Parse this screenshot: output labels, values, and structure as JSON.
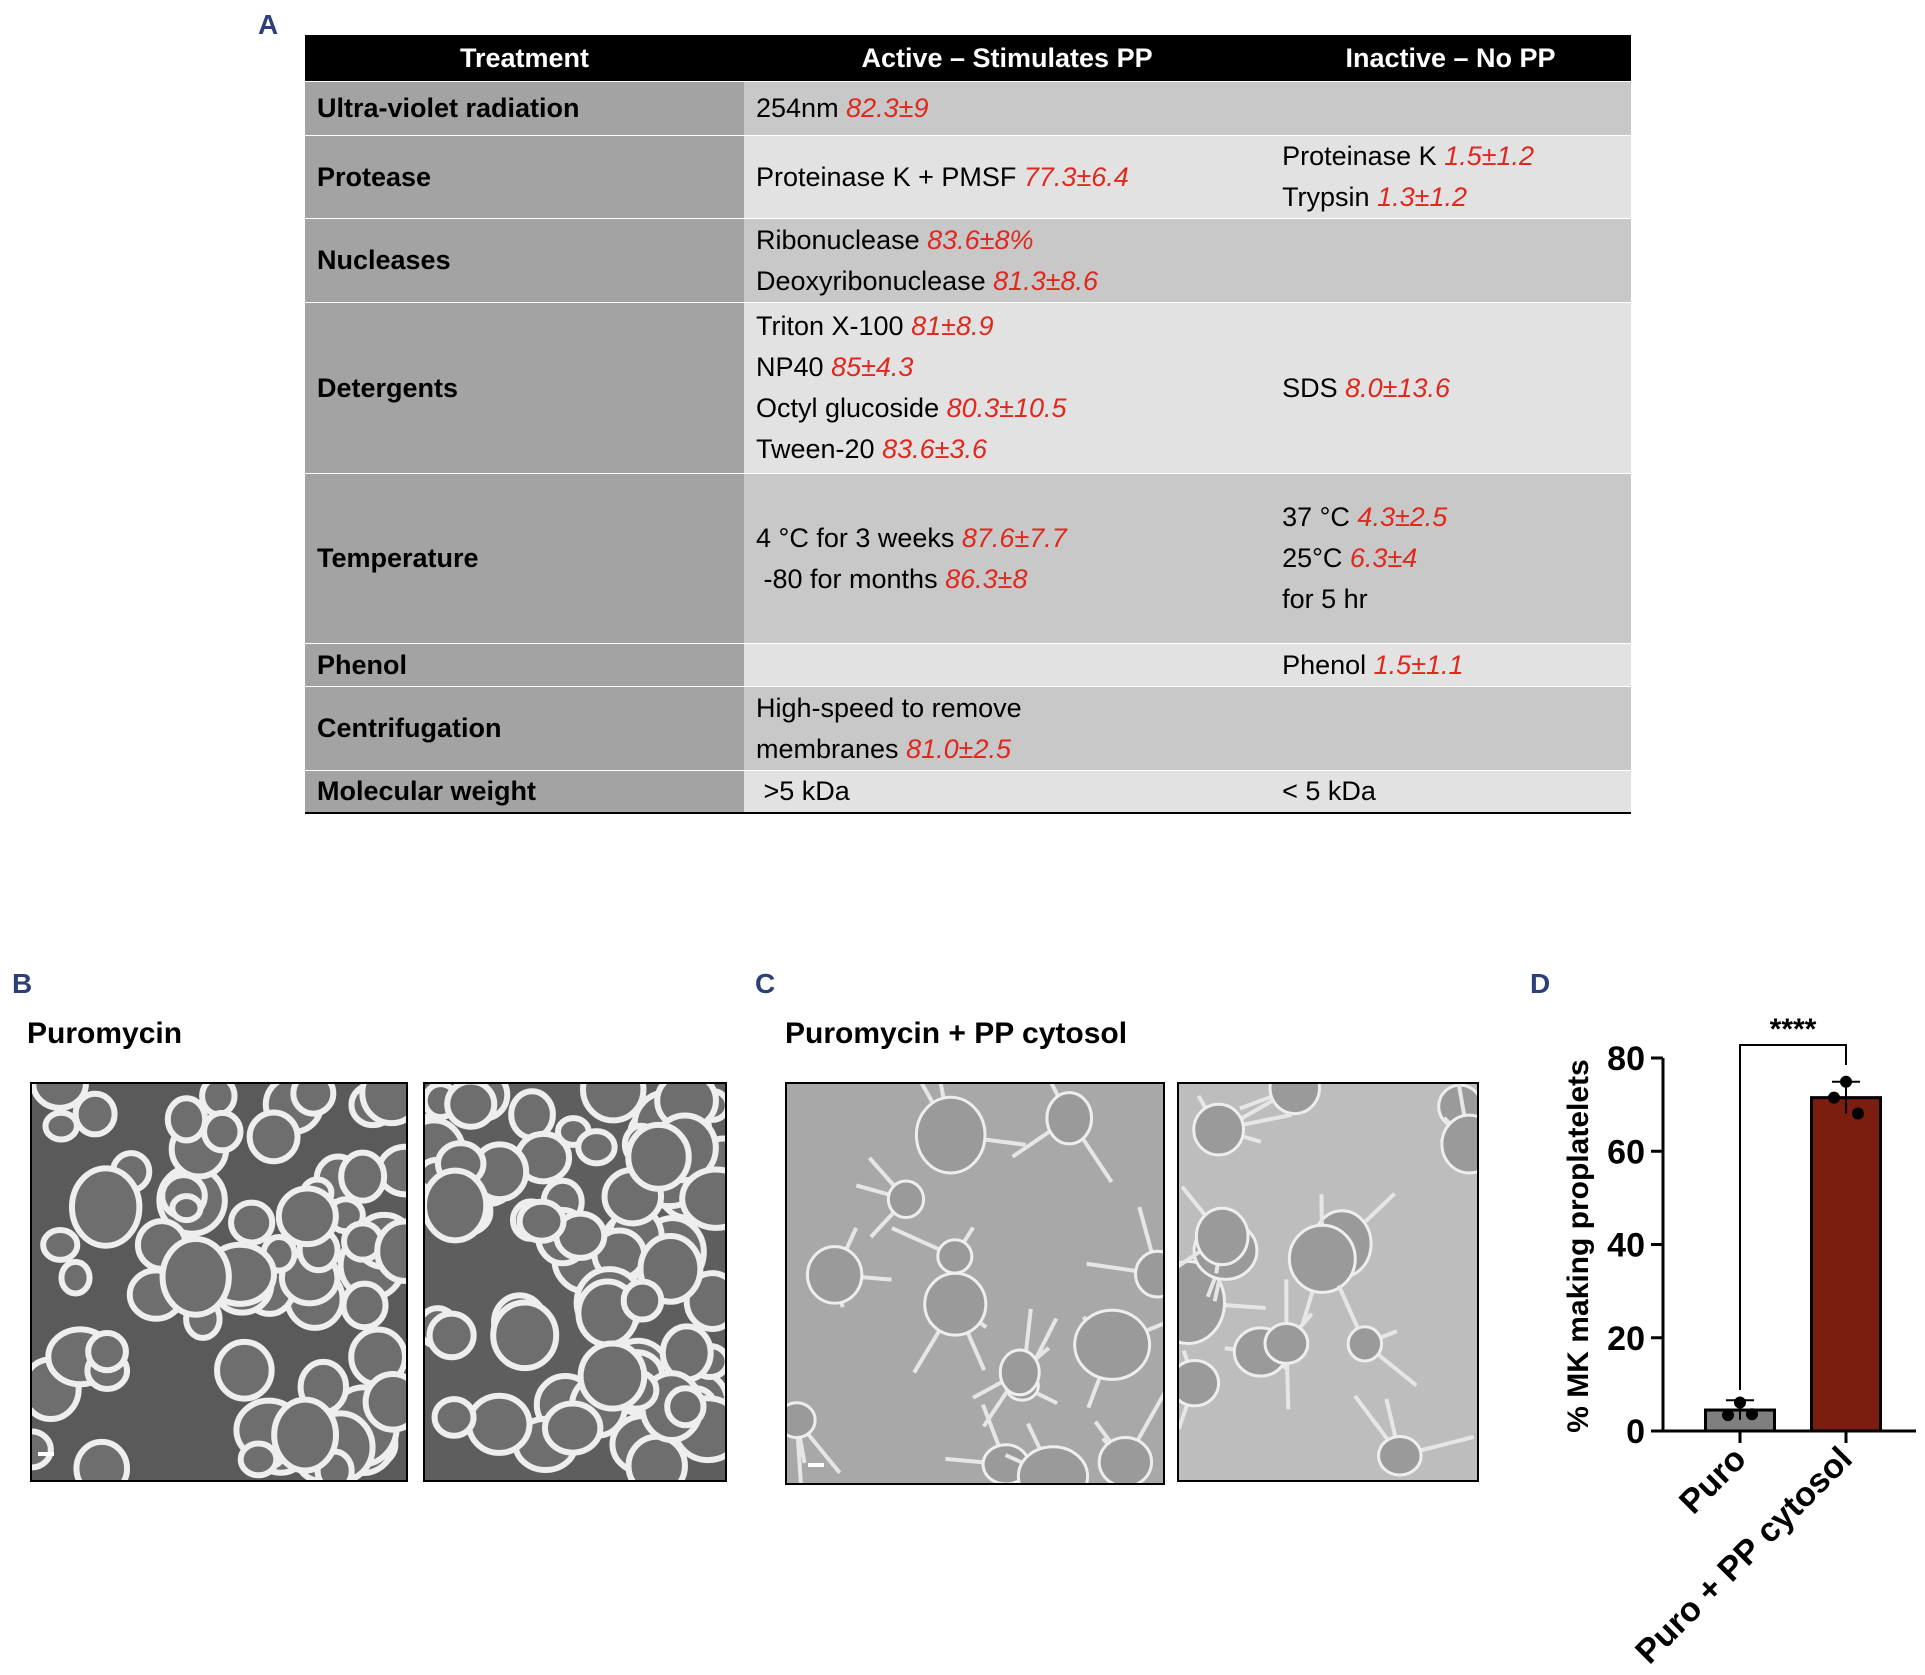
{
  "panels": {
    "a": "A",
    "b": "B",
    "c": "C",
    "d": "D"
  },
  "table": {
    "header": [
      "Treatment",
      "Active – Stimulates PP",
      "Inactive – No PP"
    ],
    "rows": [
      {
        "treatment": "Ultra-violet  radiation",
        "active": [
          {
            "text": "254nm",
            "result": "82.3±9"
          }
        ]
      },
      {
        "treatment": "Protease",
        "active": [
          {
            "text": "Proteinase K + PMSF",
            "result": "77.3±6.4"
          }
        ],
        "inactive": [
          {
            "text": "Proteinase K",
            "result": "1.5±1.2"
          },
          {
            "text": "Trypsin",
            "result": "1.3±1.2"
          }
        ]
      },
      {
        "treatment": "Nucleases",
        "active": [
          {
            "text": "Ribonuclease",
            "result": "83.6±8%"
          },
          {
            "text": "Deoxyribonuclease",
            "result": "81.3±8.6"
          }
        ]
      },
      {
        "treatment": "Detergents",
        "active": [
          {
            "text": "Triton X-100",
            "result": "81±8.9"
          },
          {
            "text": "NP40",
            "result": "85±4.3"
          },
          {
            "text": "Octyl glucoside",
            "result": "80.3±10.5"
          },
          {
            "text": "Tween-20",
            "result": "83.6±3.6"
          }
        ],
        "inactive": [
          {
            "text": "SDS",
            "result": "8.0±13.6"
          }
        ]
      },
      {
        "treatment": "Temperature",
        "active": [
          {
            "text": "4 °C for 3 weeks",
            "result": "87.6±7.7"
          },
          {
            "text": " -80 for months",
            "result": "86.3±8"
          }
        ],
        "inactive": [
          {
            "text": "37 °C",
            "result": "4.3±2.5"
          },
          {
            "text": "25°C",
            "result": "6.3±4"
          },
          {
            "text": "for 5 hr"
          }
        ]
      },
      {
        "treatment": "Phenol",
        "inactive": [
          {
            "text": "Phenol",
            "result": "1.5±1.1"
          }
        ]
      },
      {
        "treatment": "Centrifugation",
        "active": [
          {
            "text": "High-speed to remove"
          },
          {
            "text": "membranes",
            "result": "81.0±2.5"
          }
        ]
      },
      {
        "treatment": "Molecular  weight",
        "active": [
          {
            "text": " >5 kDa"
          }
        ],
        "inactive": [
          {
            "text": "< 5 kDa"
          }
        ]
      }
    ]
  },
  "images": {
    "b_caption": "Puromycin",
    "c_caption": "Puromycin + PP cytosol"
  },
  "chart_data": {
    "type": "bar",
    "ylabel": "% MK making proplatelets",
    "categories": [
      "Puro",
      "Puro + PP cytosol"
    ],
    "values": [
      4.5,
      71.5
    ],
    "errors": [
      2.1,
      3.4
    ],
    "points": [
      [
        6.1,
        3.4,
        3.6
      ],
      [
        74.9,
        71.5,
        68.1
      ]
    ],
    "colors": [
      "#7f7f7f",
      "#7b1d0f"
    ],
    "significance": "****",
    "ylim": [
      0,
      80
    ],
    "yticks": [
      0,
      20,
      40,
      60,
      80
    ]
  }
}
